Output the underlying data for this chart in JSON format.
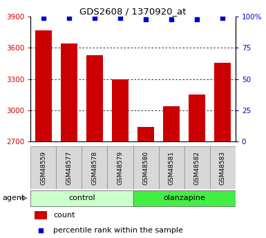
{
  "title": "GDS2608 / 1370920_at",
  "samples": [
    "GSM48559",
    "GSM48577",
    "GSM48578",
    "GSM48579",
    "GSM48580",
    "GSM48581",
    "GSM48582",
    "GSM48583"
  ],
  "counts": [
    3770,
    3640,
    3530,
    3300,
    2840,
    3040,
    3150,
    3460
  ],
  "percentiles": [
    99,
    99,
    99,
    99,
    98,
    98,
    98,
    99
  ],
  "group_colors": [
    "#ccffcc",
    "#44ee44"
  ],
  "bar_color": "#cc0000",
  "dot_color": "#0000cc",
  "ylim_left": [
    2700,
    3900
  ],
  "ylim_right": [
    0,
    100
  ],
  "yticks_left": [
    2700,
    3000,
    3300,
    3600,
    3900
  ],
  "yticks_right": [
    0,
    25,
    50,
    75,
    100
  ],
  "left_tick_color": "#cc0000",
  "right_tick_color": "#0000cc",
  "agent_label": "agent",
  "legend_count": "count",
  "legend_percentile": "percentile rank within the sample"
}
